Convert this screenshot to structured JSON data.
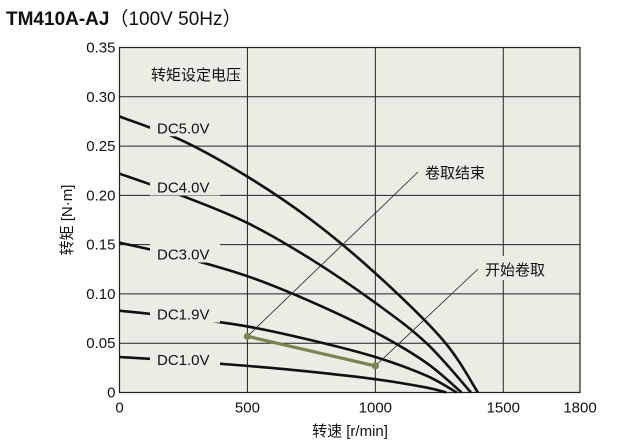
{
  "title": {
    "model": "TM410A-AJ",
    "condition": "（100V 50Hz）"
  },
  "chart_data": {
    "type": "line",
    "title": "TM410A-AJ（100V 50Hz）",
    "xlabel": "转速 [r/min]",
    "ylabel": "转矩 [N·m]",
    "xlim": [
      0,
      1800
    ],
    "ylim": [
      0,
      0.35
    ],
    "xticks": [
      0,
      500,
      1000,
      1500,
      1800
    ],
    "yticks": [
      0,
      0.05,
      0.1,
      0.15,
      0.2,
      0.25,
      0.3,
      0.35
    ],
    "ytick_labels": [
      "0",
      "0.05",
      "0.10",
      "0.15",
      "0.20",
      "0.25",
      "0.30",
      "0.35"
    ],
    "grid": true,
    "legend_title": "转矩设定电压",
    "series": [
      {
        "name": "DC5.0V",
        "x": [
          0,
          250,
          500,
          750,
          1000,
          1265,
          1401
        ],
        "y": [
          0.28,
          0.255,
          0.219,
          0.175,
          0.121,
          0.053,
          0
        ]
      },
      {
        "name": "DC4.0V",
        "x": [
          0,
          250,
          500,
          750,
          1000,
          1200,
          1374
        ],
        "y": [
          0.222,
          0.199,
          0.172,
          0.135,
          0.091,
          0.05,
          0
        ]
      },
      {
        "name": "DC3.0V",
        "x": [
          0,
          250,
          500,
          750,
          1000,
          1200,
          1337
        ],
        "y": [
          0.152,
          0.137,
          0.118,
          0.092,
          0.061,
          0.03,
          0
        ]
      },
      {
        "name": "DC1.9V",
        "x": [
          0,
          250,
          500,
          750,
          1000,
          1200,
          1318
        ],
        "y": [
          0.083,
          0.076,
          0.067,
          0.053,
          0.036,
          0.017,
          0
        ]
      },
      {
        "name": "DC1.0V",
        "x": [
          0,
          250,
          500,
          750,
          1000,
          1200,
          1277
        ],
        "y": [
          0.036,
          0.032,
          0.027,
          0.021,
          0.0135,
          0.005,
          0
        ]
      }
    ],
    "winding_line": {
      "x": [
        500,
        1000
      ],
      "y": [
        0.057,
        0.027
      ],
      "color": "#7b8350"
    },
    "annotations": [
      {
        "text": "卷取结束",
        "x": 500,
        "y": 0.057
      },
      {
        "text": "开始卷取",
        "x": 1000,
        "y": 0.027
      }
    ],
    "colors": {
      "plot_bg": "#ecebe4",
      "curve": "#111111",
      "grid": "#222222"
    }
  }
}
